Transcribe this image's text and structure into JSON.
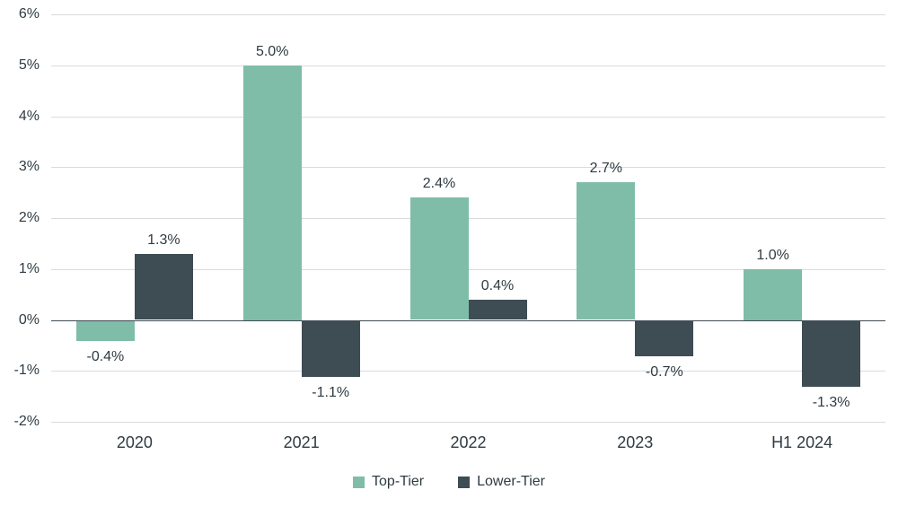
{
  "chart_data": {
    "type": "bar",
    "title": "",
    "categories": [
      "2020",
      "2021",
      "2022",
      "2023",
      "H1 2024"
    ],
    "series": [
      {
        "name": "Top-Tier",
        "color": "#7fbda9",
        "values": [
          -0.4,
          5.0,
          2.4,
          2.7,
          1.0
        ],
        "data_labels": [
          "-0.4%",
          "5.0%",
          "2.4%",
          "2.7%",
          "1.0%"
        ]
      },
      {
        "name": "Lower-Tier",
        "color": "#3e4c54",
        "values": [
          1.3,
          -1.1,
          0.4,
          -0.7,
          -1.3
        ],
        "data_labels": [
          "1.3%",
          "-1.1%",
          "0.4%",
          "-0.7%",
          "-1.3%"
        ]
      }
    ],
    "y_axis": {
      "min": -2,
      "max": 6,
      "tick_step": 1,
      "tick_labels": [
        "6%",
        "5%",
        "4%",
        "3%",
        "2%",
        "1%",
        "0%",
        "-1%",
        "-2%"
      ]
    },
    "grid": true,
    "legend_position": "bottom",
    "legend": [
      "Top-Tier",
      "Lower-Tier"
    ],
    "colors": {
      "gridline": "#d8dcdf",
      "zero_line": "#3e4c54",
      "text": "#2e3b41",
      "background": "#ffffff"
    }
  }
}
